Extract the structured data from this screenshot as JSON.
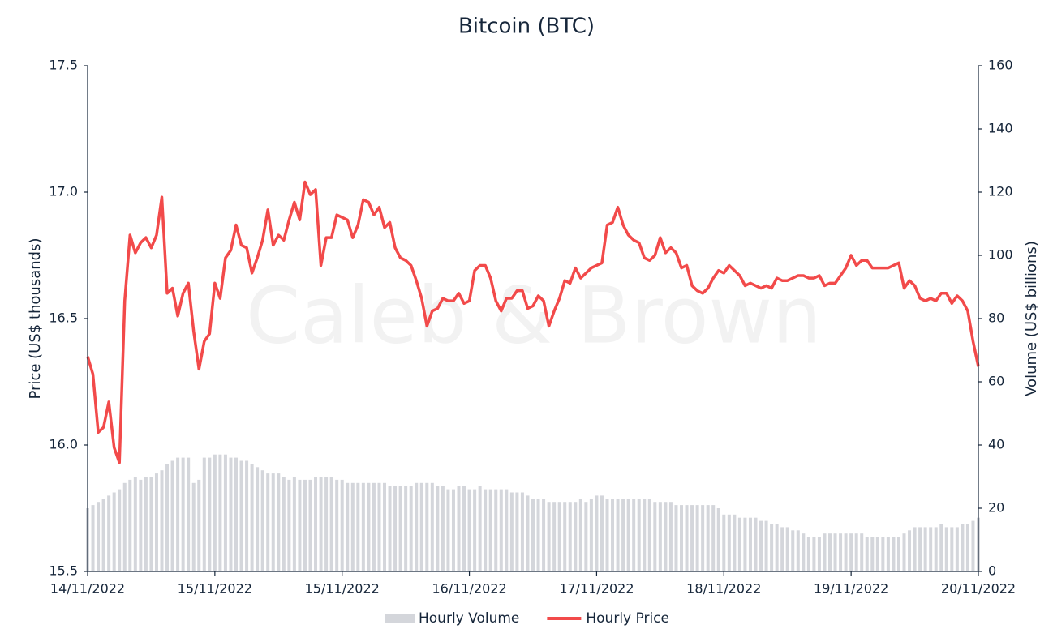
{
  "chart_data": {
    "type": "combo",
    "title": "Bitcoin (BTC)",
    "watermark": "Caleb & Brown",
    "y_label": "Price (US$ thousands)",
    "y2_label": "Volume (US$ billions)",
    "ylim": [
      15.5,
      17.5
    ],
    "yticks": [
      15.5,
      {
        "value": 16,
        "label": "16.0"
      },
      16.5,
      {
        "value": 17,
        "label": "17.0"
      },
      17.5
    ],
    "y2lim": [
      0,
      160
    ],
    "y2ticks": [
      0,
      20,
      40,
      60,
      80,
      100,
      120,
      140,
      160
    ],
    "grid": false,
    "legend": "bottom",
    "categories": [
      "14/11/2022",
      null,
      null,
      null,
      null,
      null,
      null,
      null,
      null,
      null,
      null,
      null,
      null,
      null,
      null,
      null,
      null,
      null,
      null,
      null,
      null,
      null,
      null,
      null,
      "15/11/2022",
      null,
      null,
      null,
      null,
      null,
      null,
      null,
      null,
      null,
      null,
      null,
      null,
      null,
      null,
      null,
      null,
      null,
      null,
      null,
      null,
      null,
      null,
      null,
      "15/11/2022",
      null,
      null,
      null,
      null,
      null,
      null,
      null,
      null,
      null,
      null,
      null,
      null,
      null,
      null,
      null,
      null,
      null,
      null,
      null,
      null,
      null,
      null,
      null,
      "16/11/2022",
      null,
      null,
      null,
      null,
      null,
      null,
      null,
      null,
      null,
      null,
      null,
      null,
      null,
      null,
      null,
      null,
      null,
      null,
      null,
      null,
      null,
      null,
      null,
      "17/11/2022",
      null,
      null,
      null,
      null,
      null,
      null,
      null,
      null,
      null,
      null,
      null,
      null,
      null,
      null,
      null,
      null,
      null,
      null,
      null,
      null,
      null,
      null,
      null,
      "18/11/2022",
      null,
      null,
      null,
      null,
      null,
      null,
      null,
      null,
      null,
      null,
      null,
      null,
      null,
      null,
      null,
      null,
      null,
      null,
      null,
      null,
      null,
      null,
      null,
      "19/11/2022",
      null,
      null,
      null,
      null,
      null,
      null,
      null,
      null,
      null,
      null,
      null,
      null,
      null,
      null,
      null,
      null,
      null,
      null,
      null,
      null,
      null,
      null,
      null,
      "20/11/2022"
    ],
    "series": [
      {
        "name": "Hourly Volume",
        "type": "bar",
        "axis": "y2",
        "color": "#d4d6db",
        "values": [
          20,
          21,
          22,
          23,
          24,
          25,
          26,
          28,
          29,
          30,
          29,
          30,
          30,
          31,
          32,
          34,
          35,
          36,
          36,
          36,
          28,
          29,
          36,
          36,
          37,
          37,
          37,
          36,
          36,
          35,
          35,
          34,
          33,
          32,
          31,
          31,
          31,
          30,
          29,
          30,
          29,
          29,
          29,
          30,
          30,
          30,
          30,
          29,
          29,
          28,
          28,
          28,
          28,
          28,
          28,
          28,
          28,
          27,
          27,
          27,
          27,
          27,
          28,
          28,
          28,
          28,
          27,
          27,
          26,
          26,
          27,
          27,
          26,
          26,
          27,
          26,
          26,
          26,
          26,
          26,
          25,
          25,
          25,
          24,
          23,
          23,
          23,
          22,
          22,
          22,
          22,
          22,
          22,
          23,
          22,
          23,
          24,
          24,
          23,
          23,
          23,
          23,
          23,
          23,
          23,
          23,
          23,
          22,
          22,
          22,
          22,
          21,
          21,
          21,
          21,
          21,
          21,
          21,
          21,
          20,
          18,
          18,
          18,
          17,
          17,
          17,
          17,
          16,
          16,
          15,
          15,
          14,
          14,
          13,
          13,
          12,
          11,
          11,
          11,
          12,
          12,
          12,
          12,
          12,
          12,
          12,
          12,
          11,
          11,
          11,
          11,
          11,
          11,
          11,
          12,
          13,
          14,
          14,
          14,
          14,
          14,
          15,
          14,
          14,
          14,
          15,
          15,
          16,
          17
        ]
      },
      {
        "name": "Hourly Price",
        "type": "line",
        "color": "#f24a4a",
        "values": [
          16.35,
          16.28,
          16.05,
          16.07,
          16.17,
          15.99,
          15.93,
          16.57,
          16.83,
          16.76,
          16.8,
          16.82,
          16.78,
          16.83,
          16.98,
          16.6,
          16.62,
          16.51,
          16.6,
          16.64,
          16.45,
          16.3,
          16.41,
          16.44,
          16.64,
          16.58,
          16.74,
          16.77,
          16.87,
          16.79,
          16.78,
          16.68,
          16.74,
          16.81,
          16.93,
          16.79,
          16.83,
          16.81,
          16.89,
          16.96,
          16.89,
          17.04,
          16.99,
          17.01,
          16.71,
          16.82,
          16.82,
          16.91,
          16.9,
          16.89,
          16.82,
          16.87,
          16.97,
          16.96,
          16.91,
          16.94,
          16.86,
          16.88,
          16.78,
          16.74,
          16.73,
          16.71,
          16.65,
          16.58,
          16.47,
          16.53,
          16.54,
          16.58,
          16.57,
          16.57,
          16.6,
          16.56,
          16.57,
          16.69,
          16.71,
          16.71,
          16.66,
          16.57,
          16.53,
          16.58,
          16.58,
          16.61,
          16.61,
          16.54,
          16.55,
          16.59,
          16.57,
          16.47,
          16.53,
          16.58,
          16.65,
          16.64,
          16.7,
          16.66,
          16.68,
          16.7,
          16.71,
          16.72,
          16.87,
          16.88,
          16.94,
          16.87,
          16.83,
          16.81,
          16.8,
          16.74,
          16.73,
          16.75,
          16.82,
          16.76,
          16.78,
          16.76,
          16.7,
          16.71,
          16.63,
          16.61,
          16.6,
          16.62,
          16.66,
          16.69,
          16.68,
          16.71,
          16.69,
          16.67,
          16.63,
          16.64,
          16.63,
          16.62,
          16.63,
          16.62,
          16.66,
          16.65,
          16.65,
          16.66,
          16.67,
          16.67,
          16.66,
          16.66,
          16.67,
          16.63,
          16.64,
          16.64,
          16.67,
          16.7,
          16.75,
          16.71,
          16.73,
          16.73,
          16.7,
          16.7,
          16.7,
          16.7,
          16.71,
          16.72,
          16.62,
          16.65,
          16.63,
          16.58,
          16.57,
          16.58,
          16.57,
          16.6,
          16.6,
          16.56,
          16.59,
          16.57,
          16.53,
          16.41,
          16.31
        ]
      }
    ]
  }
}
